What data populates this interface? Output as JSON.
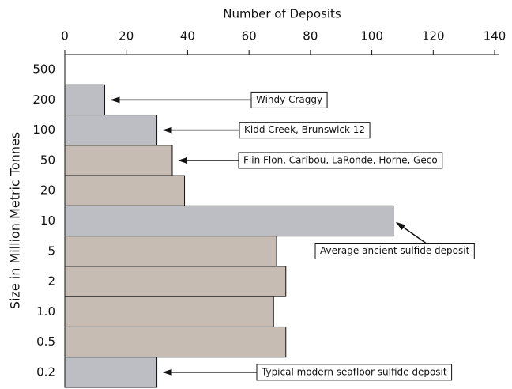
{
  "chart_data": {
    "type": "bar",
    "orientation": "horizontal",
    "title": "Number of Deposits",
    "ylabel": "Size in Million Metric Tonnes",
    "categories": [
      "500",
      "200",
      "100",
      "50",
      "20",
      "10",
      "5",
      "2",
      "1.0",
      "0.5",
      "0.2"
    ],
    "values": [
      null,
      13,
      30,
      35,
      39,
      107,
      69,
      72,
      68,
      72,
      30
    ],
    "colors": [
      "#bfbfbf",
      "#bcbec4",
      "#bcbec4",
      "#c6bcb4",
      "#c6bcb4",
      "#bcbec4",
      "#c6bcb4",
      "#c6bcb4",
      "#c6bcb4",
      "#c6bcb4",
      "#bcbec4"
    ],
    "xlim": [
      0,
      140
    ],
    "xticks": [
      0,
      20,
      40,
      60,
      80,
      100,
      120,
      140
    ],
    "annotations": [
      {
        "text": "Windy Craggy",
        "category": "200"
      },
      {
        "text": "Kidd Creek, Brunswick 12",
        "category": "100"
      },
      {
        "text": "Flin Flon, Caribou, LaRonde, Horne, Geco",
        "category": "50"
      },
      {
        "text": "Average ancient sulfide deposit",
        "category": "10"
      },
      {
        "text": "Typical modern seafloor sulfide deposit",
        "category": "0.2"
      }
    ]
  }
}
